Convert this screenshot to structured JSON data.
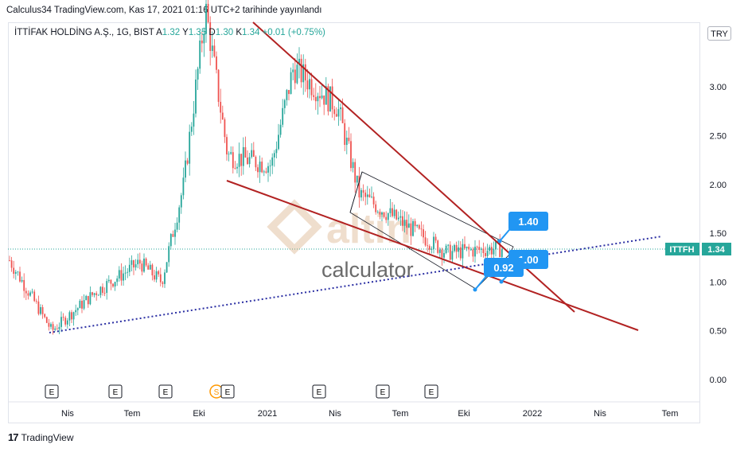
{
  "header": {
    "published": "Calculus34 TradingView.com, Kas 17, 2021 01:16 UTC+2 tarihinde yayınlandı"
  },
  "legend": {
    "symbol": "İTTİFAK HOLDİNG A.Ş., 1G, BIST",
    "o_label": "A",
    "o_val": "1.32",
    "h_label": "Y",
    "h_val": "1.35",
    "l_label": "D",
    "l_val": "1.30",
    "c_label": "K",
    "c_val": "1.34",
    "change": "+0.01 (+0.75%)"
  },
  "currency": "TRY",
  "price_tag": {
    "ticker": "ITTFH",
    "value": "1.34"
  },
  "callouts": {
    "top": "1.40",
    "middle": "1.00",
    "bottom": "0.92"
  },
  "watermark": {
    "brand": "altin",
    "sub": "calculator"
  },
  "earnings_marker": "E",
  "split_marker": "S",
  "footer": {
    "brand": "TradingView"
  },
  "colors": {
    "up": "#26a69a",
    "down": "#ef5350",
    "trendline": "#b22222",
    "dotted": "#2b2fa3",
    "callout": "#2196f3"
  },
  "chart_data": {
    "type": "candlestick",
    "ylim": [
      -0.25,
      3.8
    ],
    "y_ticks": [
      3.0,
      2.5,
      2.0,
      1.5,
      1.0,
      0.5,
      0.0
    ],
    "y_tick_labels": [
      "3.00",
      "2.50",
      "2.00",
      "1.50",
      "1.00",
      "0.50",
      "0.00"
    ],
    "x_ticks": [
      "Nis",
      "Tem",
      "Eki",
      "2021",
      "Nis",
      "Tem",
      "Eki",
      "2022",
      "Nis",
      "Tem"
    ],
    "approx_close_path": [
      {
        "date": "2020-01",
        "close": 1.25
      },
      {
        "date": "2020-03",
        "close": 0.5
      },
      {
        "date": "2020-05",
        "close": 0.9
      },
      {
        "date": "2020-07",
        "close": 1.2
      },
      {
        "date": "2020-08",
        "close": 1.0
      },
      {
        "date": "2020-09",
        "close": 2.0
      },
      {
        "date": "2020-10",
        "close": 3.8
      },
      {
        "date": "2020-11",
        "close": 2.3
      },
      {
        "date": "2021-01",
        "close": 2.2
      },
      {
        "date": "2021-02",
        "close": 3.2
      },
      {
        "date": "2021-04",
        "close": 2.8
      },
      {
        "date": "2021-05",
        "close": 1.9
      },
      {
        "date": "2021-07",
        "close": 1.6
      },
      {
        "date": "2021-09",
        "close": 1.3
      },
      {
        "date": "2021-11",
        "close": 1.34
      }
    ],
    "last_price": 1.34,
    "annotations": [
      "1.40",
      "1.00",
      "0.92"
    ]
  }
}
